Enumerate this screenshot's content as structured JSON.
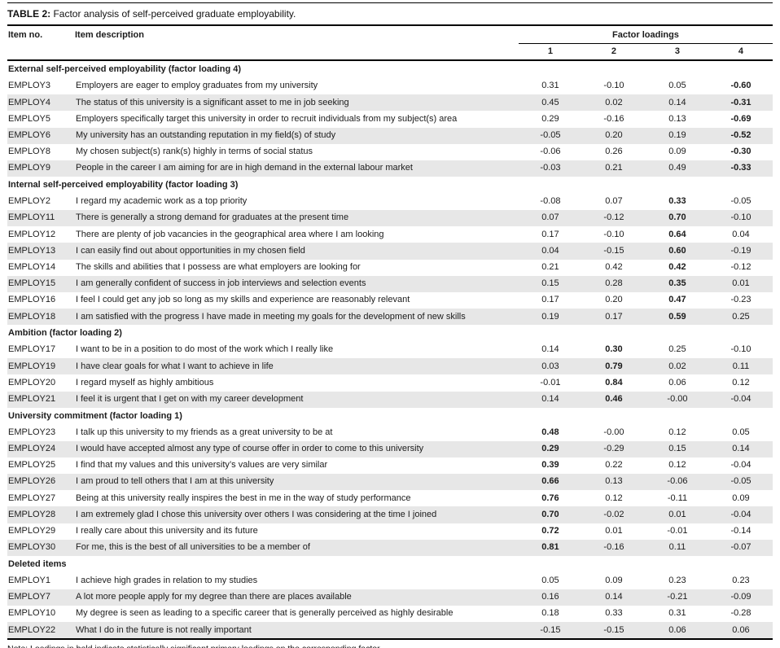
{
  "table": {
    "label": "TABLE 2:",
    "title": "Factor analysis of self-perceived graduate employability.",
    "columns": {
      "item_no": "Item no.",
      "item_description": "Item description",
      "factor_loadings": "Factor loadings",
      "factors": [
        "1",
        "2",
        "3",
        "4"
      ]
    },
    "sections": [
      {
        "header": "External self-perceived employability (factor loading 4)",
        "rows": [
          {
            "item": "EMPLOY3",
            "description": "Employers are eager to employ graduates from my university",
            "loadings": [
              "0.31",
              "-0.10",
              "0.05",
              "-0.60"
            ],
            "bold": [
              4
            ]
          },
          {
            "item": "EMPLOY4",
            "description": "The status of this university is a significant asset to me in job seeking",
            "loadings": [
              "0.45",
              "0.02",
              "0.14",
              "-0.31"
            ],
            "bold": [
              4
            ]
          },
          {
            "item": "EMPLOY5",
            "description": "Employers specifically target this university in order to recruit individuals from my subject(s) area",
            "loadings": [
              "0.29",
              "-0.16",
              "0.13",
              "-0.69"
            ],
            "bold": [
              4
            ]
          },
          {
            "item": "EMPLOY6",
            "description": "My university has an outstanding reputation in my field(s) of study",
            "loadings": [
              "-0.05",
              "0.20",
              "0.19",
              "-0.52"
            ],
            "bold": [
              4
            ]
          },
          {
            "item": "EMPLOY8",
            "description": "My chosen subject(s) rank(s) highly in terms of social status",
            "loadings": [
              "-0.06",
              "0.26",
              "0.09",
              "-0.30"
            ],
            "bold": [
              4
            ]
          },
          {
            "item": "EMPLOY9",
            "description": "People in the career I am aiming for are in high demand in the external labour market",
            "loadings": [
              "-0.03",
              "0.21",
              "0.49",
              "-0.33"
            ],
            "bold": [
              4
            ]
          }
        ]
      },
      {
        "header": "Internal self-perceived employability (factor loading 3)",
        "rows": [
          {
            "item": "EMPLOY2",
            "description": "I regard my academic work as a top priority",
            "loadings": [
              "-0.08",
              "0.07",
              "0.33",
              "-0.05"
            ],
            "bold": [
              3
            ]
          },
          {
            "item": "EMPLOY11",
            "description": "There is generally a strong demand for graduates at the present time",
            "loadings": [
              "0.07",
              "-0.12",
              "0.70",
              "-0.10"
            ],
            "bold": [
              3
            ]
          },
          {
            "item": "EMPLOY12",
            "description": "There are plenty of job vacancies in the geographical area where I am looking",
            "loadings": [
              "0.17",
              "-0.10",
              "0.64",
              "0.04"
            ],
            "bold": [
              3
            ]
          },
          {
            "item": "EMPLOY13",
            "description": "I can easily find out about opportunities in my chosen field",
            "loadings": [
              "0.04",
              "-0.15",
              "0.60",
              "-0.19"
            ],
            "bold": [
              3
            ]
          },
          {
            "item": "EMPLOY14",
            "description": "The skills and abilities that I possess are what employers are looking for",
            "loadings": [
              "0.21",
              "0.42",
              "0.42",
              "-0.12"
            ],
            "bold": [
              3
            ]
          },
          {
            "item": "EMPLOY15",
            "description": "I am generally confident of success in job interviews and selection events",
            "loadings": [
              "0.15",
              "0.28",
              "0.35",
              "0.01"
            ],
            "bold": [
              3
            ]
          },
          {
            "item": "EMPLOY16",
            "description": "I feel I could get any job so long as my skills and experience are reasonably relevant",
            "loadings": [
              "0.17",
              "0.20",
              "0.47",
              "-0.23"
            ],
            "bold": [
              3
            ]
          },
          {
            "item": "EMPLOY18",
            "description": "I am satisfied with the progress I have made in meeting my goals for the development of new skills",
            "loadings": [
              "0.19",
              "0.17",
              "0.59",
              "0.25"
            ],
            "bold": [
              3
            ]
          }
        ]
      },
      {
        "header": "Ambition (factor loading 2)",
        "rows": [
          {
            "item": "EMPLOY17",
            "description": "I want to be in a position to do most of the work which I really like",
            "loadings": [
              "0.14",
              "0.30",
              "0.25",
              "-0.10"
            ],
            "bold": [
              2
            ]
          },
          {
            "item": "EMPLOY19",
            "description": "I have clear goals for what I want to achieve in life",
            "loadings": [
              "0.03",
              "0.79",
              "0.02",
              "0.11"
            ],
            "bold": [
              2
            ]
          },
          {
            "item": "EMPLOY20",
            "description": "I regard myself as highly ambitious",
            "loadings": [
              "-0.01",
              "0.84",
              "0.06",
              "0.12"
            ],
            "bold": [
              2
            ]
          },
          {
            "item": "EMPLOY21",
            "description": "I feel it is urgent that I get on with my career development",
            "loadings": [
              "0.14",
              "0.46",
              "-0.00",
              "-0.04"
            ],
            "bold": [
              2
            ]
          }
        ]
      },
      {
        "header": "University commitment (factor loading 1)",
        "rows": [
          {
            "item": "EMPLOY23",
            "description": "I talk up this university to my friends as a great university to be at",
            "loadings": [
              "0.48",
              "-0.00",
              "0.12",
              "0.05"
            ],
            "bold": [
              1
            ]
          },
          {
            "item": "EMPLOY24",
            "description": "I would have accepted almost any type of course offer in order to come to this university",
            "loadings": [
              "0.29",
              "-0.29",
              "0.15",
              "0.14"
            ],
            "bold": [
              1
            ]
          },
          {
            "item": "EMPLOY25",
            "description": "I find that my values and this university’s values are very similar",
            "loadings": [
              "0.39",
              "0.22",
              "0.12",
              "-0.04"
            ],
            "bold": [
              1
            ]
          },
          {
            "item": "EMPLOY26",
            "description": "I am proud to tell others that I am at this university",
            "loadings": [
              "0.66",
              "0.13",
              "-0.06",
              "-0.05"
            ],
            "bold": [
              1
            ]
          },
          {
            "item": "EMPLOY27",
            "description": "Being at this university really inspires the best in me in the way of study performance",
            "loadings": [
              "0.76",
              "0.12",
              "-0.11",
              "0.09"
            ],
            "bold": [
              1
            ]
          },
          {
            "item": "EMPLOY28",
            "description": "I am extremely glad I chose this university over others I was considering at the time I joined",
            "loadings": [
              "0.70",
              "-0.02",
              "0.01",
              "-0.04"
            ],
            "bold": [
              1
            ]
          },
          {
            "item": "EMPLOY29",
            "description": "I really care about this university and its future",
            "loadings": [
              "0.72",
              "0.01",
              "-0.01",
              "-0.14"
            ],
            "bold": [
              1
            ]
          },
          {
            "item": "EMPLOY30",
            "description": "For me, this is the best of all universities to be a member of",
            "loadings": [
              "0.81",
              "-0.16",
              "0.11",
              "-0.07"
            ],
            "bold": [
              1
            ]
          }
        ]
      },
      {
        "header": "Deleted items",
        "rows": [
          {
            "item": "EMPLOY1",
            "description": "I achieve high grades in relation to my studies",
            "loadings": [
              "0.05",
              "0.09",
              "0.23",
              "0.23"
            ],
            "bold": []
          },
          {
            "item": "EMPLOY7",
            "description": "A lot more people apply for my degree than there are places available",
            "loadings": [
              "0.16",
              "0.14",
              "-0.21",
              "-0.09"
            ],
            "bold": []
          },
          {
            "item": "EMPLOY10",
            "description": "My degree is seen as leading to a specific career that is generally perceived as highly desirable",
            "loadings": [
              "0.18",
              "0.33",
              "0.31",
              "-0.28"
            ],
            "bold": []
          },
          {
            "item": "EMPLOY22",
            "description": "What I do in the future is not really important",
            "loadings": [
              "-0.15",
              "-0.15",
              "0.06",
              "0.06"
            ],
            "bold": []
          }
        ]
      }
    ],
    "note": "Note: Loadings in bold indicate statistically significant primary loadings on the corresponding factor.",
    "colors": {
      "stripe": "#e7e7e7",
      "rule": "#000000",
      "text": "#1c1c1c"
    }
  }
}
